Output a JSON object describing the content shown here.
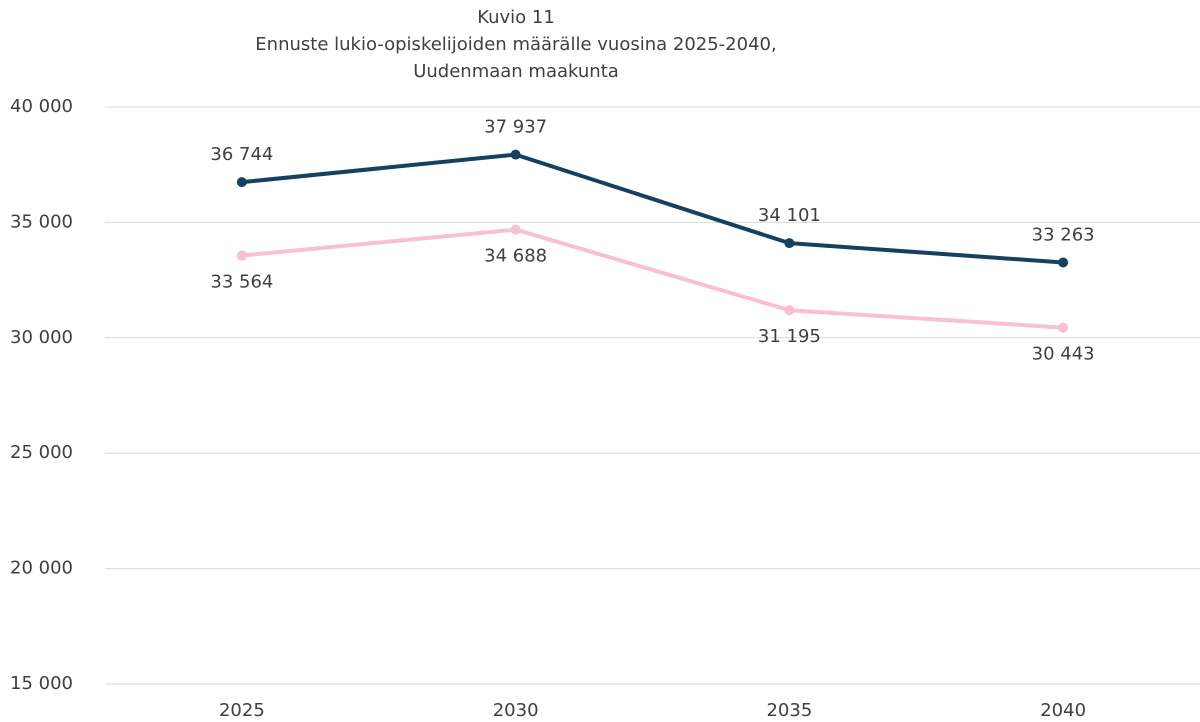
{
  "chart_data": {
    "type": "line",
    "title": [
      "Kuvio 11",
      "Ennuste lukio-opiskelijoiden määrälle vuosina 2025-2040,",
      "Uudenmaan maakunta"
    ],
    "categories": [
      "2025",
      "2030",
      "2035",
      "2040"
    ],
    "series": [
      {
        "color": "#173f5f",
        "values": [
          36744,
          37937,
          34101,
          33263
        ],
        "value_labels": [
          "36 744",
          "37 937",
          "34 101",
          "33 263"
        ],
        "label_position": "above"
      },
      {
        "color": "#f9c0cf",
        "values": [
          33564,
          34688,
          31195,
          30443
        ],
        "value_labels": [
          "33 564",
          "34 688",
          "31 195",
          "30 443"
        ],
        "label_position": "below"
      }
    ],
    "ylim": [
      15000,
      40000
    ],
    "yticks": [
      {
        "value": 15000,
        "label": "15 000"
      },
      {
        "value": 20000,
        "label": "20 000"
      },
      {
        "value": 25000,
        "label": "25 000"
      },
      {
        "value": 30000,
        "label": "30 000"
      },
      {
        "value": 35000,
        "label": "35 000"
      },
      {
        "value": 40000,
        "label": "40 000"
      }
    ],
    "grid": true
  }
}
